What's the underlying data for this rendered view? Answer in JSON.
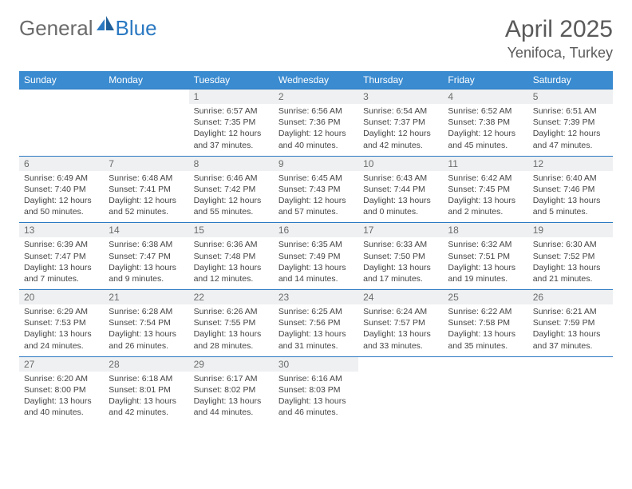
{
  "brand": {
    "part1": "General",
    "part2": "Blue"
  },
  "title": "April 2025",
  "location": "Yenifoca, Turkey",
  "colors": {
    "header_bg": "#3a8bd0",
    "rule": "#2b79c2",
    "daynum_bg": "#eef0f1",
    "text_muted": "#6b6b6b",
    "body_text": "#444444",
    "page_bg": "#ffffff"
  },
  "typography": {
    "title_fontsize": 30,
    "location_fontsize": 18,
    "dayhead_fontsize": 12,
    "daybody_fontsize": 10.5
  },
  "day_headers": [
    "Sunday",
    "Monday",
    "Tuesday",
    "Wednesday",
    "Thursday",
    "Friday",
    "Saturday"
  ],
  "weeks": [
    [
      {
        "n": "",
        "sr": "",
        "ss": "",
        "dl": "",
        "empty": true
      },
      {
        "n": "",
        "sr": "",
        "ss": "",
        "dl": "",
        "empty": true
      },
      {
        "n": "1",
        "sr": "Sunrise: 6:57 AM",
        "ss": "Sunset: 7:35 PM",
        "dl": "Daylight: 12 hours and 37 minutes."
      },
      {
        "n": "2",
        "sr": "Sunrise: 6:56 AM",
        "ss": "Sunset: 7:36 PM",
        "dl": "Daylight: 12 hours and 40 minutes."
      },
      {
        "n": "3",
        "sr": "Sunrise: 6:54 AM",
        "ss": "Sunset: 7:37 PM",
        "dl": "Daylight: 12 hours and 42 minutes."
      },
      {
        "n": "4",
        "sr": "Sunrise: 6:52 AM",
        "ss": "Sunset: 7:38 PM",
        "dl": "Daylight: 12 hours and 45 minutes."
      },
      {
        "n": "5",
        "sr": "Sunrise: 6:51 AM",
        "ss": "Sunset: 7:39 PM",
        "dl": "Daylight: 12 hours and 47 minutes."
      }
    ],
    [
      {
        "n": "6",
        "sr": "Sunrise: 6:49 AM",
        "ss": "Sunset: 7:40 PM",
        "dl": "Daylight: 12 hours and 50 minutes."
      },
      {
        "n": "7",
        "sr": "Sunrise: 6:48 AM",
        "ss": "Sunset: 7:41 PM",
        "dl": "Daylight: 12 hours and 52 minutes."
      },
      {
        "n": "8",
        "sr": "Sunrise: 6:46 AM",
        "ss": "Sunset: 7:42 PM",
        "dl": "Daylight: 12 hours and 55 minutes."
      },
      {
        "n": "9",
        "sr": "Sunrise: 6:45 AM",
        "ss": "Sunset: 7:43 PM",
        "dl": "Daylight: 12 hours and 57 minutes."
      },
      {
        "n": "10",
        "sr": "Sunrise: 6:43 AM",
        "ss": "Sunset: 7:44 PM",
        "dl": "Daylight: 13 hours and 0 minutes."
      },
      {
        "n": "11",
        "sr": "Sunrise: 6:42 AM",
        "ss": "Sunset: 7:45 PM",
        "dl": "Daylight: 13 hours and 2 minutes."
      },
      {
        "n": "12",
        "sr": "Sunrise: 6:40 AM",
        "ss": "Sunset: 7:46 PM",
        "dl": "Daylight: 13 hours and 5 minutes."
      }
    ],
    [
      {
        "n": "13",
        "sr": "Sunrise: 6:39 AM",
        "ss": "Sunset: 7:47 PM",
        "dl": "Daylight: 13 hours and 7 minutes."
      },
      {
        "n": "14",
        "sr": "Sunrise: 6:38 AM",
        "ss": "Sunset: 7:47 PM",
        "dl": "Daylight: 13 hours and 9 minutes."
      },
      {
        "n": "15",
        "sr": "Sunrise: 6:36 AM",
        "ss": "Sunset: 7:48 PM",
        "dl": "Daylight: 13 hours and 12 minutes."
      },
      {
        "n": "16",
        "sr": "Sunrise: 6:35 AM",
        "ss": "Sunset: 7:49 PM",
        "dl": "Daylight: 13 hours and 14 minutes."
      },
      {
        "n": "17",
        "sr": "Sunrise: 6:33 AM",
        "ss": "Sunset: 7:50 PM",
        "dl": "Daylight: 13 hours and 17 minutes."
      },
      {
        "n": "18",
        "sr": "Sunrise: 6:32 AM",
        "ss": "Sunset: 7:51 PM",
        "dl": "Daylight: 13 hours and 19 minutes."
      },
      {
        "n": "19",
        "sr": "Sunrise: 6:30 AM",
        "ss": "Sunset: 7:52 PM",
        "dl": "Daylight: 13 hours and 21 minutes."
      }
    ],
    [
      {
        "n": "20",
        "sr": "Sunrise: 6:29 AM",
        "ss": "Sunset: 7:53 PM",
        "dl": "Daylight: 13 hours and 24 minutes."
      },
      {
        "n": "21",
        "sr": "Sunrise: 6:28 AM",
        "ss": "Sunset: 7:54 PM",
        "dl": "Daylight: 13 hours and 26 minutes."
      },
      {
        "n": "22",
        "sr": "Sunrise: 6:26 AM",
        "ss": "Sunset: 7:55 PM",
        "dl": "Daylight: 13 hours and 28 minutes."
      },
      {
        "n": "23",
        "sr": "Sunrise: 6:25 AM",
        "ss": "Sunset: 7:56 PM",
        "dl": "Daylight: 13 hours and 31 minutes."
      },
      {
        "n": "24",
        "sr": "Sunrise: 6:24 AM",
        "ss": "Sunset: 7:57 PM",
        "dl": "Daylight: 13 hours and 33 minutes."
      },
      {
        "n": "25",
        "sr": "Sunrise: 6:22 AM",
        "ss": "Sunset: 7:58 PM",
        "dl": "Daylight: 13 hours and 35 minutes."
      },
      {
        "n": "26",
        "sr": "Sunrise: 6:21 AM",
        "ss": "Sunset: 7:59 PM",
        "dl": "Daylight: 13 hours and 37 minutes."
      }
    ],
    [
      {
        "n": "27",
        "sr": "Sunrise: 6:20 AM",
        "ss": "Sunset: 8:00 PM",
        "dl": "Daylight: 13 hours and 40 minutes."
      },
      {
        "n": "28",
        "sr": "Sunrise: 6:18 AM",
        "ss": "Sunset: 8:01 PM",
        "dl": "Daylight: 13 hours and 42 minutes."
      },
      {
        "n": "29",
        "sr": "Sunrise: 6:17 AM",
        "ss": "Sunset: 8:02 PM",
        "dl": "Daylight: 13 hours and 44 minutes."
      },
      {
        "n": "30",
        "sr": "Sunrise: 6:16 AM",
        "ss": "Sunset: 8:03 PM",
        "dl": "Daylight: 13 hours and 46 minutes."
      },
      {
        "n": "",
        "sr": "",
        "ss": "",
        "dl": "",
        "empty": true
      },
      {
        "n": "",
        "sr": "",
        "ss": "",
        "dl": "",
        "empty": true
      },
      {
        "n": "",
        "sr": "",
        "ss": "",
        "dl": "",
        "empty": true
      }
    ]
  ]
}
